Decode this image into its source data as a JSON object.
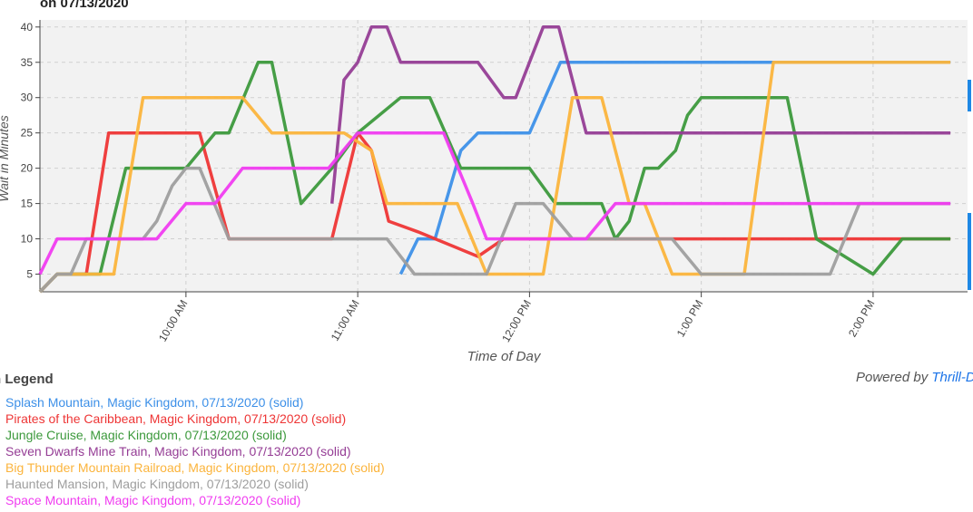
{
  "title": "on 07/13/2020",
  "powered": {
    "prefix": "Powered by ",
    "link": "Thrill-D"
  },
  "legend_title": "n Legend",
  "chart_data": {
    "type": "line",
    "xlabel": "Time of Day",
    "ylabel": "Wait in Minutes",
    "ylim": [
      2.5,
      41
    ],
    "xlim": [
      9.15,
      14.55
    ],
    "yticks": [
      5,
      10,
      15,
      20,
      25,
      30,
      35,
      40
    ],
    "xticks": [
      {
        "value": 10,
        "label": "10:00 AM"
      },
      {
        "value": 11,
        "label": "11:00 AM"
      },
      {
        "value": 12,
        "label": "12:00 PM"
      },
      {
        "value": 13,
        "label": "1:00 PM"
      },
      {
        "value": 14,
        "label": "2:00 PM"
      }
    ],
    "grid": true,
    "series": [
      {
        "name": "Splash Mountain",
        "park": "Magic Kingdom",
        "date": "07/13/2020",
        "style": "(solid)",
        "color": "#3d90e8",
        "points": [
          [
            11.25,
            5
          ],
          [
            11.35,
            10
          ],
          [
            11.45,
            10
          ],
          [
            11.6,
            22.5
          ],
          [
            11.7,
            25
          ],
          [
            12.0,
            25
          ],
          [
            12.18,
            35
          ],
          [
            14.45,
            35
          ]
        ]
      },
      {
        "name": "Pirates of the Caribbean",
        "park": "Magic Kingdom",
        "date": "07/13/2020",
        "style": "(solid)",
        "color": "#ee3535",
        "points": [
          [
            9.15,
            2.5
          ],
          [
            9.25,
            5
          ],
          [
            9.42,
            5
          ],
          [
            9.55,
            25
          ],
          [
            10.08,
            25
          ],
          [
            10.25,
            10
          ],
          [
            10.85,
            10
          ],
          [
            11.0,
            25
          ],
          [
            11.08,
            22.5
          ],
          [
            11.18,
            12.5
          ],
          [
            11.35,
            11
          ],
          [
            11.7,
            7.5
          ],
          [
            11.85,
            10
          ],
          [
            14.45,
            10
          ]
        ]
      },
      {
        "name": "Jungle Cruise",
        "park": "Magic Kingdom",
        "date": "07/13/2020",
        "style": "(solid)",
        "color": "#3c993c",
        "points": [
          [
            9.15,
            2.5
          ],
          [
            9.25,
            5
          ],
          [
            9.5,
            5
          ],
          [
            9.65,
            20
          ],
          [
            10.0,
            20
          ],
          [
            10.17,
            25
          ],
          [
            10.25,
            25
          ],
          [
            10.42,
            35
          ],
          [
            10.5,
            35
          ],
          [
            10.67,
            15
          ],
          [
            10.85,
            20
          ],
          [
            11.0,
            25
          ],
          [
            11.25,
            30
          ],
          [
            11.42,
            30
          ],
          [
            11.6,
            20
          ],
          [
            12.0,
            20
          ],
          [
            12.15,
            15
          ],
          [
            12.42,
            15
          ],
          [
            12.5,
            10
          ],
          [
            12.58,
            12.5
          ],
          [
            12.67,
            20
          ],
          [
            12.75,
            20
          ],
          [
            12.85,
            22.5
          ],
          [
            12.92,
            27.5
          ],
          [
            13.0,
            30
          ],
          [
            13.5,
            30
          ],
          [
            13.67,
            10
          ],
          [
            14.0,
            5
          ],
          [
            14.17,
            10
          ],
          [
            14.45,
            10
          ]
        ]
      },
      {
        "name": "Seven Dwarfs Mine Train",
        "park": "Magic Kingdom",
        "date": "07/13/2020",
        "style": "(solid)",
        "color": "#953d95",
        "points": [
          [
            10.85,
            15
          ],
          [
            10.92,
            32.5
          ],
          [
            11.0,
            35
          ],
          [
            11.08,
            40
          ],
          [
            11.17,
            40
          ],
          [
            11.25,
            35
          ],
          [
            11.7,
            35
          ],
          [
            11.85,
            30
          ],
          [
            11.92,
            30
          ],
          [
            12.08,
            40
          ],
          [
            12.17,
            40
          ],
          [
            12.33,
            25
          ],
          [
            14.45,
            25
          ]
        ]
      },
      {
        "name": "Big Thunder Mountain Railroad",
        "park": "Magic Kingdom",
        "date": "07/13/2020",
        "style": "(solid)",
        "color": "#fbb43c",
        "points": [
          [
            9.15,
            2.5
          ],
          [
            9.25,
            5
          ],
          [
            9.58,
            5
          ],
          [
            9.75,
            30
          ],
          [
            10.33,
            30
          ],
          [
            10.5,
            25
          ],
          [
            10.92,
            25
          ],
          [
            11.08,
            22.5
          ],
          [
            11.17,
            15
          ],
          [
            11.58,
            15
          ],
          [
            11.75,
            5
          ],
          [
            12.08,
            5
          ],
          [
            12.25,
            30
          ],
          [
            12.42,
            30
          ],
          [
            12.58,
            15
          ],
          [
            12.67,
            15
          ],
          [
            12.83,
            5
          ],
          [
            13.25,
            5
          ],
          [
            13.42,
            35
          ],
          [
            14.45,
            35
          ]
        ]
      },
      {
        "name": "Haunted Mansion",
        "park": "Magic Kingdom",
        "date": "07/13/2020",
        "style": "(solid)",
        "color": "#9e9e9e",
        "points": [
          [
            9.15,
            2.5
          ],
          [
            9.25,
            5
          ],
          [
            9.33,
            5
          ],
          [
            9.42,
            10
          ],
          [
            9.75,
            10
          ],
          [
            9.83,
            12.5
          ],
          [
            9.92,
            17.5
          ],
          [
            10.0,
            20
          ],
          [
            10.08,
            20
          ],
          [
            10.25,
            10
          ],
          [
            11.17,
            10
          ],
          [
            11.33,
            5
          ],
          [
            11.75,
            5
          ],
          [
            11.92,
            15
          ],
          [
            12.08,
            15
          ],
          [
            12.25,
            10
          ],
          [
            12.75,
            10
          ],
          [
            12.83,
            10
          ],
          [
            13.0,
            5
          ],
          [
            13.75,
            5
          ],
          [
            13.92,
            15
          ],
          [
            14.45,
            15
          ]
        ]
      },
      {
        "name": "Space Mountain",
        "park": "Magic Kingdom",
        "date": "07/13/2020",
        "style": "(solid)",
        "color": "#f03cf0",
        "points": [
          [
            9.15,
            5
          ],
          [
            9.25,
            10
          ],
          [
            9.83,
            10
          ],
          [
            10.0,
            15
          ],
          [
            10.17,
            15
          ],
          [
            10.33,
            20
          ],
          [
            10.83,
            20
          ],
          [
            11.0,
            25
          ],
          [
            11.5,
            25
          ],
          [
            11.67,
            15
          ],
          [
            11.75,
            10
          ],
          [
            12.33,
            10
          ],
          [
            12.5,
            15
          ],
          [
            14.45,
            15
          ]
        ]
      }
    ]
  }
}
